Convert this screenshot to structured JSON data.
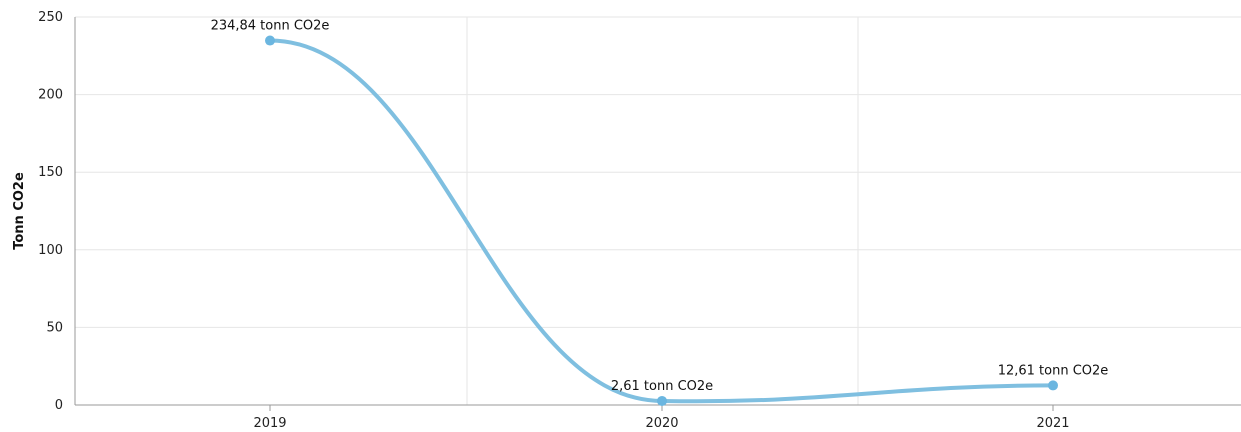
{
  "chart_data": {
    "type": "line",
    "title": "",
    "xlabel": "",
    "ylabel": "Tonn CO2e",
    "categories": [
      "2019",
      "2020",
      "2021"
    ],
    "series": [
      {
        "values": [
          234.84,
          2.61,
          12.61
        ],
        "data_labels": [
          "234,84 tonn CO2e",
          "2,61 tonn CO2e",
          "12,61 tonn CO2e"
        ]
      }
    ],
    "ylim": [
      0,
      250
    ],
    "yticks": [
      0,
      50,
      100,
      150,
      200,
      250
    ],
    "grid": true,
    "smooth": true,
    "colors": {
      "series": "#7fbfe0",
      "marker": "#6bb6e0",
      "grid": "#e6e6e6",
      "axis": "#999999"
    }
  }
}
